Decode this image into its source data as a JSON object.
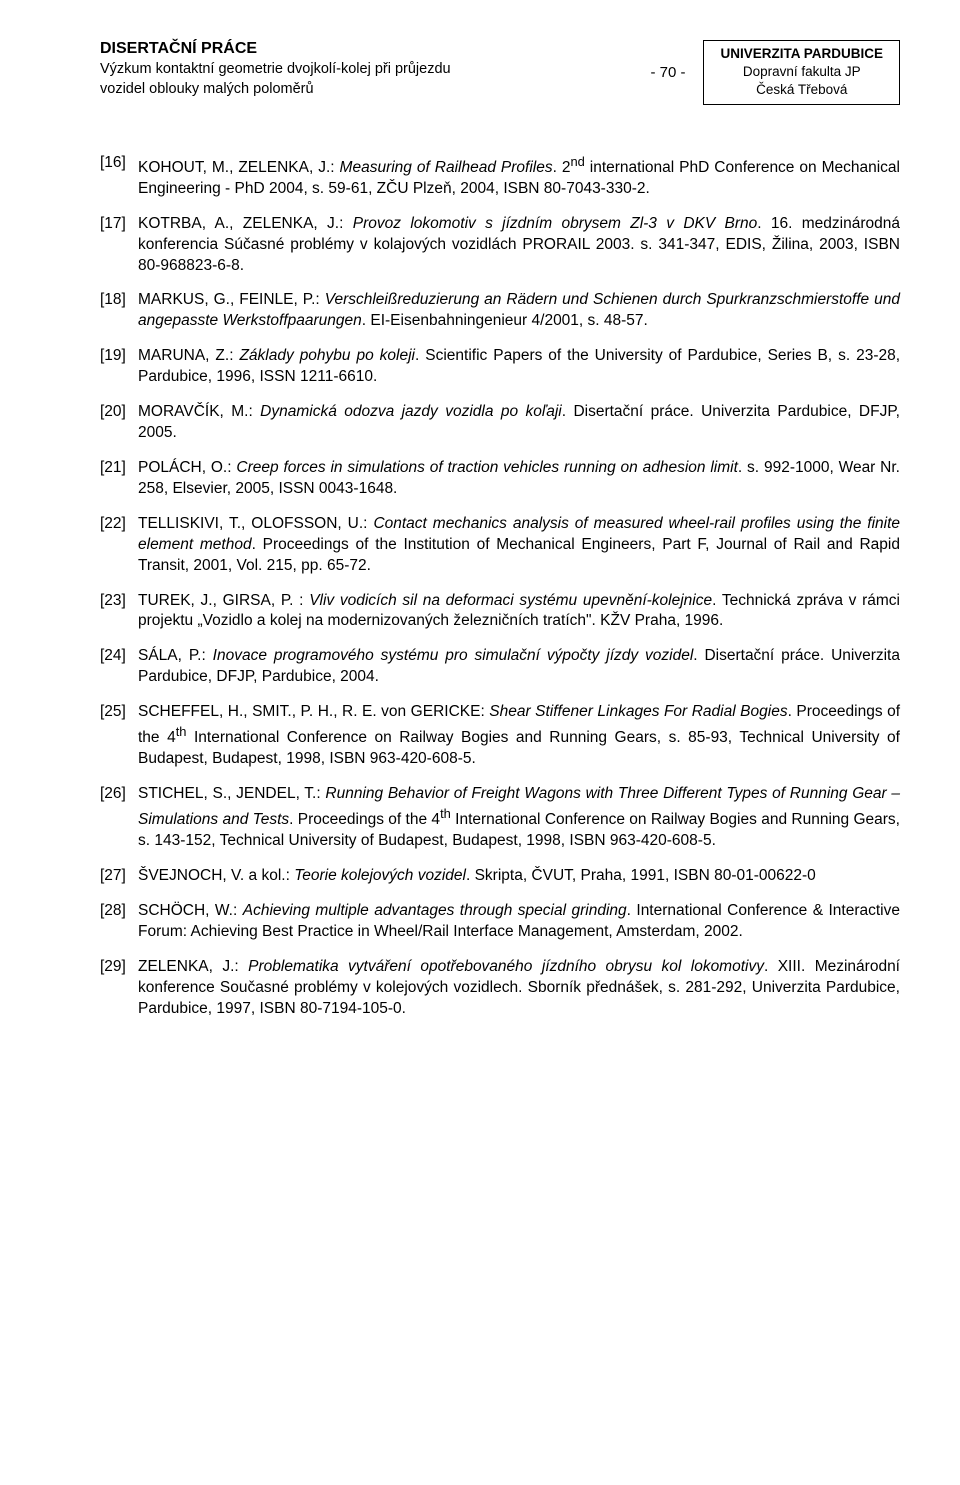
{
  "header": {
    "title": "DISERTAČNÍ PRÁCE",
    "subtitle_l1": "Výzkum kontaktní geometrie dvojkolí-kolej při průjezdu",
    "subtitle_l2": "vozidel oblouky malých poloměrů",
    "page_num": "- 70 -",
    "uni_l1": "UNIVERZITA PARDUBICE",
    "uni_l2": "Dopravní fakulta JP",
    "uni_l3": "Česká Třebová"
  },
  "refs": [
    {
      "num": "[16]",
      "a": "KOHOUT, M., ZELENKA, J.: ",
      "t": "Measuring of Railhead Profiles",
      "r": ". 2",
      "sup": "nd",
      "r2": " international PhD Conference on Mechanical Engineering - PhD 2004, s. 59-61, ZČU Plzeň, 2004, ISBN 80-7043-330-2."
    },
    {
      "num": "[17]",
      "a": "KOTRBA, A., ZELENKA, J.: ",
      "t": "Provoz lokomotiv s jízdním obrysem Zl-3 v DKV Brno",
      "r": ". 16. medzinárodná konferencia Súčasné problémy v kolajových vozidlách PRORAIL 2003. s. 341-347, EDIS, Žilina, 2003, ISBN 80-968823-6-8."
    },
    {
      "num": "[18]",
      "a": "MARKUS, G., FEINLE, P.: ",
      "t": "Verschleißreduzierung an Rädern und Schienen durch Spurkranzschmierstoffe und angepasste Werkstoffpaarungen",
      "r": ". EI-Eisenbahningenieur 4/2001, s. 48-57."
    },
    {
      "num": "[19]",
      "a": "MARUNA, Z.: ",
      "t": "Základy pohybu po koleji",
      "r": ". Scientific Papers of the University of Pardubice, Series B, s. 23-28, Pardubice, 1996, ISSN 1211-6610."
    },
    {
      "num": "[20]",
      "a": "MORAVČÍK, M.: ",
      "t": "Dynamická odozva jazdy vozidla po koľaji",
      "r": ". Disertační práce. Univerzita Pardubice, DFJP, 2005."
    },
    {
      "num": "[21]",
      "a": "POLÁCH, O.: ",
      "t": "Creep forces in simulations of traction vehicles running on adhesion limit",
      "r": ". s. 992-1000, Wear Nr. 258, Elsevier, 2005, ISSN 0043-1648."
    },
    {
      "num": "[22]",
      "a": "TELLISKIVI, T., OLOFSSON, U.: ",
      "t": "Contact mechanics analysis of measured wheel-rail profiles using the finite element method",
      "r": ". Proceedings of the Institution of Mechanical Engineers, Part F, Journal of Rail and Rapid Transit, 2001, Vol. 215, pp. 65-72."
    },
    {
      "num": "[23]",
      "a": "TUREK, J., GIRSA, P. : ",
      "t": "Vliv vodicích sil na deformaci systému upevnění-kolejnice",
      "r": ". Technická zpráva v rámci projektu „Vozidlo a kolej na modernizovaných železničních tratích\". KŽV Praha, 1996."
    },
    {
      "num": "[24]",
      "a": "SÁLA, P.: ",
      "t": "Inovace programového systému pro simulační výpočty jízdy vozidel",
      "r": ". Disertační práce. Univerzita Pardubice, DFJP, Pardubice, 2004."
    },
    {
      "num": "[25]",
      "a": "SCHEFFEL, H., SMIT., P. H., R. E. von GERICKE: ",
      "t": "Shear Stiffener Linkages For Radial Bogies",
      "r": ". Proceedings of the 4",
      "sup": "th",
      "r2": " International Conference on Railway Bogies and Running Gears, s. 85-93, Technical University of Budapest, Budapest, 1998, ISBN 963-420-608-5."
    },
    {
      "num": "[26]",
      "a": "STICHEL, S., JENDEL, T.: ",
      "t": "Running Behavior of Freight Wagons with Three Different Types of Running Gear – Simulations and Tests",
      "r": ". Proceedings of the 4",
      "sup": "th",
      "r2": " International Conference on Railway Bogies and Running Gears, s. 143-152, Technical University of Budapest, Budapest, 1998, ISBN 963-420-608-5."
    },
    {
      "num": "[27]",
      "a": "ŠVEJNOCH, V. a kol.: ",
      "t": "Teorie kolejových vozidel",
      "r": ". Skripta, ČVUT, Praha, 1991, ISBN 80-01-00622-0"
    },
    {
      "num": "[28]",
      "a": "SCHÖCH, W.: ",
      "t": "Achieving multiple advantages through special grinding",
      "r": ". International Conference & Interactive Forum: Achieving Best Practice in Wheel/Rail Interface Management, Amsterdam, 2002."
    },
    {
      "num": "[29]",
      "a": "ZELENKA, J.: ",
      "t": "Problematika vytváření opotřebovaného jízdního obrysu kol lokomotivy",
      "r": ". XIII. Mezinárodní konference Současné problémy v kolejových vozidlech. Sborník přednášek, s. 281-292, Univerzita Pardubice, Pardubice, 1997, ISBN 80-7194-105-0."
    }
  ]
}
